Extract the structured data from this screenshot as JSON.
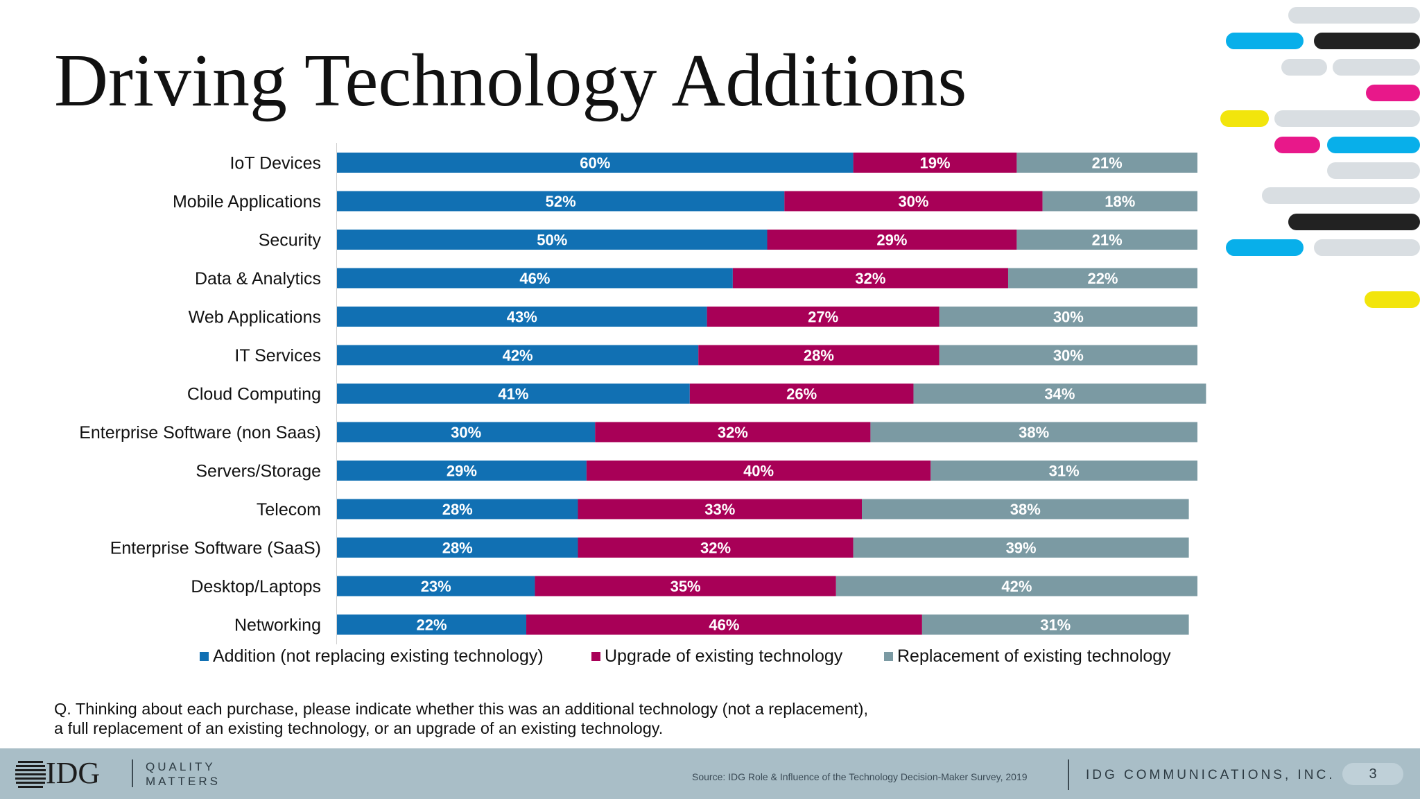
{
  "title": "Driving Technology Additions",
  "colors": {
    "addition": "#1170b3",
    "upgrade": "#a80057",
    "replacement": "#7b9aa3",
    "cyan": "#08afea",
    "black": "#222222",
    "gray": "#d9dee2",
    "pink": "#e8188a",
    "yellow": "#f2e50c"
  },
  "chart_data": {
    "type": "bar",
    "orientation": "horizontal",
    "stacked": true,
    "categories": [
      "IoT Devices",
      "Mobile Applications",
      "Security",
      "Data & Analytics",
      "Web Applications",
      "IT Services",
      "Cloud Computing",
      "Enterprise Software (non Saas)",
      "Servers/Storage",
      "Telecom",
      "Enterprise Software (SaaS)",
      "Desktop/Laptops",
      "Networking"
    ],
    "series": [
      {
        "name": "Addition (not replacing existing technology)",
        "color_key": "addition",
        "values": [
          60,
          52,
          50,
          46,
          43,
          42,
          41,
          30,
          29,
          28,
          28,
          23,
          22
        ]
      },
      {
        "name": "Upgrade of existing technology",
        "color_key": "upgrade",
        "values": [
          19,
          30,
          29,
          32,
          27,
          28,
          26,
          32,
          40,
          33,
          32,
          35,
          46
        ]
      },
      {
        "name": "Replacement of existing technology",
        "color_key": "replacement",
        "values": [
          21,
          18,
          21,
          22,
          30,
          30,
          34,
          38,
          31,
          38,
          39,
          42,
          31
        ]
      }
    ],
    "value_suffix": "%",
    "xlim": [
      0,
      100
    ],
    "legend": "bottom",
    "grid": false
  },
  "question": {
    "line1": "Q. Thinking about each purchase, please indicate whether this was an additional technology (not a replacement),",
    "line2": "a full replacement of an existing technology, or an upgrade of an existing technology."
  },
  "footer": {
    "logo": "IDG",
    "tagline_1": "QUALITY",
    "tagline_2": "MATTERS",
    "source": "Source: IDG Role & Influence of the Technology Decision-Maker Survey, 2019",
    "company": "IDG COMMUNICATIONS, INC.",
    "page_number": "3"
  }
}
